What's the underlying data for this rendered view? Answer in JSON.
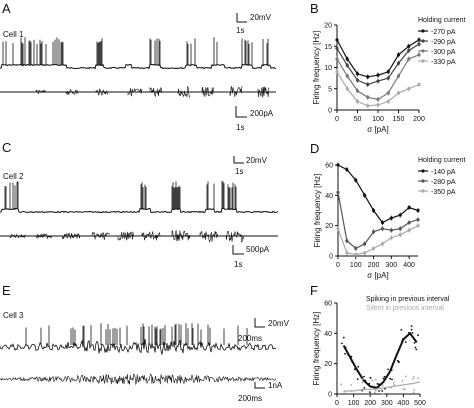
{
  "panels": {
    "A": {
      "letter": "A",
      "cell_label": "Cell 1",
      "scalebars": {
        "top_v": "20mV",
        "top_t": "1s",
        "bottom_i": "200pA",
        "bottom_t": "1s"
      }
    },
    "C": {
      "letter": "C",
      "cell_label": "Cell 2",
      "scalebars": {
        "top_v": "20mV",
        "top_t": "1s",
        "bottom_i": "500pA",
        "bottom_t": "1s"
      }
    },
    "E": {
      "letter": "E",
      "cell_label": "Cell 3",
      "scalebars": {
        "top_v": "20mV",
        "top_t": "200ms",
        "bottom_i": "1nA",
        "bottom_t": "200ms"
      }
    }
  },
  "chart_data": [
    {
      "panel": "B",
      "type": "line",
      "title": "",
      "legend_title": "Holding current",
      "legend_position": "top-right outside",
      "xlabel": "σ [pA]",
      "ylabel": "Firing frequency [Hz]",
      "xlim": [
        0,
        200
      ],
      "ylim": [
        0,
        20
      ],
      "x_ticks": [
        0,
        50,
        100,
        150,
        200
      ],
      "y_ticks": [
        0,
        5,
        10,
        15,
        20
      ],
      "grid": false,
      "x": [
        0,
        25,
        50,
        75,
        100,
        125,
        150,
        175,
        200
      ],
      "series": [
        {
          "name": "-270 pA",
          "color": "#111111",
          "values": [
            16.5,
            12.0,
            8.5,
            7.8,
            8.2,
            9.0,
            13.0,
            15.0,
            16.5
          ]
        },
        {
          "name": "-290 pA",
          "color": "#444444",
          "values": [
            14.5,
            10.5,
            7.0,
            6.0,
            6.8,
            7.5,
            11.0,
            14.0,
            15.5
          ]
        },
        {
          "name": "-300 pA",
          "color": "#777777",
          "values": [
            12.0,
            8.0,
            4.5,
            3.0,
            2.5,
            4.0,
            8.0,
            12.0,
            13.0
          ]
        },
        {
          "name": "-330 pA",
          "color": "#aaaaaa",
          "values": [
            9.0,
            5.0,
            2.0,
            1.0,
            1.2,
            2.0,
            4.0,
            5.0,
            6.0
          ]
        }
      ]
    },
    {
      "panel": "D",
      "type": "line",
      "title": "",
      "legend_title": "Holding current",
      "legend_position": "top-right outside",
      "xlabel": "σ [pA]",
      "ylabel": "Firing frequency [Hz]",
      "xlim": [
        0,
        450
      ],
      "ylim": [
        0,
        60
      ],
      "x_ticks": [
        0,
        100,
        200,
        300,
        400
      ],
      "y_ticks": [
        0,
        20,
        40,
        60
      ],
      "grid": false,
      "x": [
        0,
        50,
        100,
        150,
        200,
        250,
        300,
        350,
        400,
        450
      ],
      "series": [
        {
          "name": "-140 pA",
          "color": "#111111",
          "values": [
            60,
            57,
            50,
            40,
            30,
            22,
            25,
            27,
            32,
            30
          ]
        },
        {
          "name": "-280 pA",
          "color": "#555555",
          "values": [
            42,
            10,
            5,
            8,
            16,
            18,
            17,
            18,
            22,
            24
          ]
        },
        {
          "name": "-350 pA",
          "color": "#aaaaaa",
          "values": [
            18,
            2,
            1,
            2,
            5,
            8,
            12,
            14,
            17,
            20
          ]
        }
      ]
    },
    {
      "panel": "F",
      "type": "scatter",
      "title": "",
      "legend_position": "top-right",
      "xlabel": "σ [pA]",
      "ylabel": "Firing frequency [Hz]",
      "xlim": [
        0,
        500
      ],
      "ylim": [
        0,
        60
      ],
      "x_ticks": [
        0,
        100,
        200,
        300,
        400,
        500
      ],
      "y_ticks": [
        0,
        20,
        40,
        60
      ],
      "grid": false,
      "series": [
        {
          "name": "Spiking in previous interval",
          "color": "#111111",
          "fit_x": [
            40,
            80,
            120,
            160,
            200,
            240,
            280,
            320,
            360,
            400,
            440,
            480
          ],
          "fit_y": [
            32,
            24,
            16,
            9,
            5,
            4,
            8,
            15,
            26,
            36,
            40,
            34
          ]
        },
        {
          "name": "Silent in previous interval",
          "color": "#aaaaaa",
          "fit_x": [
            40,
            100,
            160,
            220,
            280,
            340,
            400,
            460,
            500
          ],
          "fit_y": [
            2,
            2,
            3,
            3,
            4,
            5,
            6,
            7,
            8
          ]
        }
      ]
    }
  ]
}
